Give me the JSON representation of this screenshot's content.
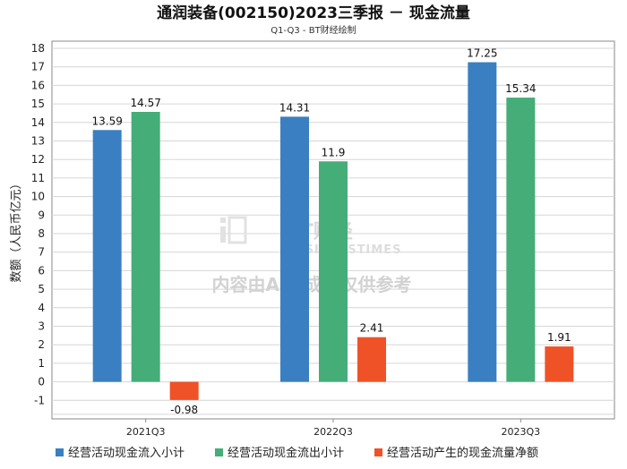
{
  "chart_data": {
    "type": "bar",
    "title": "通润装备(002150)2023三季报 － 现金流量",
    "subtitle": "Q1-Q3 - BT财经绘制",
    "ylabel": "数额（人民币亿元）",
    "xlabel": "",
    "categories": [
      "2021Q3",
      "2022Q3",
      "2023Q3"
    ],
    "ylim": [
      -2,
      18
    ],
    "yticks": [
      -1,
      0,
      1,
      2,
      3,
      4,
      5,
      6,
      7,
      8,
      9,
      10,
      11,
      12,
      13,
      14,
      15,
      16,
      17,
      18
    ],
    "grid": true,
    "legend_position": "bottom",
    "series": [
      {
        "name": "经营活动现金流入小计",
        "color": "#3a7fc1",
        "values": [
          13.59,
          14.31,
          17.25
        ]
      },
      {
        "name": "经营活动现金流出小计",
        "color": "#45ad78",
        "values": [
          14.57,
          11.9,
          15.34
        ]
      },
      {
        "name": "经营活动产生的现金流量净额",
        "color": "#f05228",
        "values": [
          -0.98,
          2.41,
          1.91
        ]
      }
    ]
  },
  "watermark": {
    "brand_cn": "BT财经",
    "brand_en": "BUSINESSTIMES",
    "note": "内容由AI生成，仅供参考"
  }
}
